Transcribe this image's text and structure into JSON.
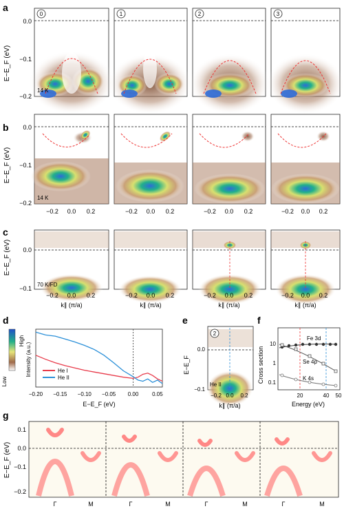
{
  "panel_letters": [
    "a",
    "b",
    "c",
    "d",
    "e",
    "f",
    "g"
  ],
  "row_a": {
    "ylabel": "E−E_F (eV)",
    "yticks": [
      "0.0",
      "−0.1",
      "−0.2"
    ],
    "stage_labels": [
      "0",
      "1",
      "2",
      "3"
    ],
    "temp_label": "14 K"
  },
  "row_b": {
    "ylabel": "E−E_F (eV)",
    "yticks": [
      "0.0",
      "−0.1",
      "−0.2"
    ],
    "xticks": [
      "−0.2",
      "0.0",
      "0.2"
    ],
    "temp_label": "14 K"
  },
  "row_c": {
    "ylabel": "E−E_F (eV)",
    "yticks": [
      "0.0",
      "−0.1"
    ],
    "xticks": [
      "−0.2",
      "0.0",
      "0.2"
    ],
    "xlabel": "k∥ (π/a)",
    "temp_label": "70 K/FD"
  },
  "colorbar": {
    "high": "High",
    "low": "Low"
  },
  "chart_d": {
    "type": "line",
    "xlabel": "E−E_F (eV)",
    "ylabel": "Intensity (a.u.)",
    "xticks": [
      "−0.20",
      "−0.15",
      "−0.10",
      "−0.05",
      "0.00",
      "0.05"
    ],
    "xlim": [
      -0.2,
      0.06
    ],
    "ylim": [
      0,
      1
    ],
    "series": [
      {
        "name": "He I",
        "color": "#e83a4a",
        "x": [
          -0.2,
          -0.18,
          -0.16,
          -0.14,
          -0.12,
          -0.1,
          -0.08,
          -0.06,
          -0.04,
          -0.02,
          0.0,
          0.01,
          0.02,
          0.03,
          0.04,
          0.05,
          0.06
        ],
        "y": [
          0.55,
          0.48,
          0.42,
          0.37,
          0.33,
          0.29,
          0.26,
          0.23,
          0.2,
          0.17,
          0.15,
          0.17,
          0.22,
          0.24,
          0.2,
          0.14,
          0.1
        ]
      },
      {
        "name": "He II",
        "color": "#2a8fd8",
        "x": [
          -0.2,
          -0.18,
          -0.16,
          -0.14,
          -0.12,
          -0.1,
          -0.08,
          -0.06,
          -0.04,
          -0.02,
          0.0,
          0.01,
          0.02,
          0.03,
          0.04,
          0.05,
          0.06
        ],
        "y": [
          0.95,
          0.9,
          0.88,
          0.83,
          0.78,
          0.72,
          0.65,
          0.55,
          0.42,
          0.28,
          0.18,
          0.12,
          0.1,
          0.14,
          0.08,
          0.12,
          0.06
        ]
      }
    ]
  },
  "panel_e": {
    "ylabel": "E−E_F",
    "yticks": [
      "0.0",
      "−0.1"
    ],
    "xticks": [
      "−0.2",
      "0.0",
      "0.2"
    ],
    "xlabel": "k∥ (π/a)",
    "stage_label": "2",
    "source_label": "He II"
  },
  "chart_f": {
    "type": "line",
    "xlabel": "Energy (eV)",
    "ylabel": "Cross section",
    "xticks": [
      "20",
      "40",
      "50"
    ],
    "yticks": [
      "10",
      "1",
      "0.1"
    ],
    "annotations": [
      "Fe 3d",
      "Se 4p",
      "K 4s"
    ]
  },
  "row_g": {
    "ylabel": "E−E_F (eV)",
    "yticks": [
      "0.1",
      "0.0",
      "−0.1",
      "−0.2"
    ],
    "xticks": [
      "Γ",
      "M",
      "Γ",
      "M",
      "Γ",
      "M",
      "Γ",
      "M"
    ]
  }
}
